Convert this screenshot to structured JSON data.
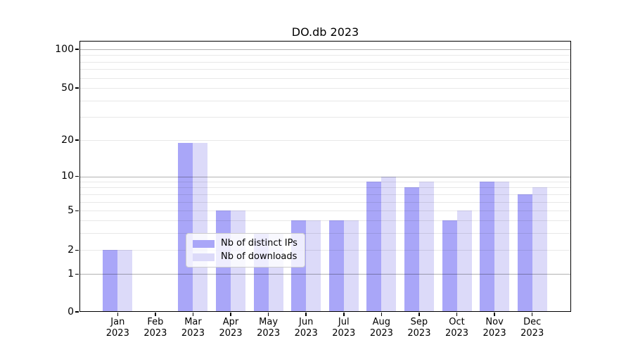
{
  "title": "DO.db 2023",
  "chart_data": {
    "type": "bar",
    "title": "DO.db 2023",
    "categories": [
      "Jan",
      "Feb",
      "Mar",
      "Apr",
      "May",
      "Jun",
      "Jul",
      "Aug",
      "Sep",
      "Oct",
      "Nov",
      "Dec"
    ],
    "year": "2023",
    "series": [
      {
        "name": "Nb of distinct IPs",
        "color": "#a9a6f8",
        "values": [
          2,
          0,
          19,
          5,
          3,
          4,
          4,
          9,
          8,
          4,
          9,
          7
        ]
      },
      {
        "name": "Nb of downloads",
        "color": "#dcdaf9",
        "values": [
          2,
          0,
          19,
          5,
          3,
          4,
          4,
          10,
          9,
          5,
          9,
          8
        ]
      }
    ],
    "xlabel": "",
    "ylabel": "",
    "yscale": "asinh-log",
    "yticks": [
      0,
      1,
      2,
      5,
      10,
      20,
      50,
      100
    ],
    "major_gridlines": [
      1,
      10,
      100
    ],
    "minor_gridlines": [
      2,
      3,
      4,
      5,
      6,
      7,
      8,
      9,
      20,
      30,
      40,
      50,
      60,
      70,
      80,
      90
    ],
    "ylim": [
      0,
      115
    ],
    "grid": true,
    "legend_position": "lower center"
  }
}
